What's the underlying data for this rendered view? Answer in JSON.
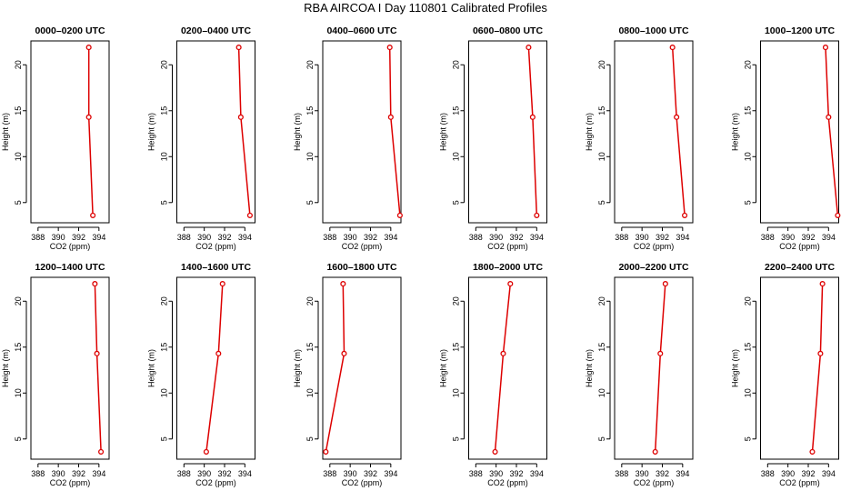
{
  "title": "RBA AIRCOA I  Day 110801  Calibrated Profiles",
  "colors": {
    "series": "#dd0000",
    "axis": "#000000"
  },
  "chart_data": [
    {
      "type": "line",
      "title": "0000–0200 UTC",
      "xlabel": "CO2 (ppm)",
      "ylabel": "Height (m)",
      "xlim": [
        387.3,
        395.0
      ],
      "ylim": [
        2.8,
        22.6
      ],
      "xticks": [
        388,
        390,
        392,
        394
      ],
      "yticks": [
        5,
        10,
        15,
        20
      ],
      "x": [
        393.0,
        393.0,
        393.4
      ],
      "y": [
        21.9,
        14.3,
        3.6
      ]
    },
    {
      "type": "line",
      "title": "0200–0400 UTC",
      "xlabel": "CO2 (ppm)",
      "ylabel": "Height (m)",
      "xlim": [
        387.3,
        395.0
      ],
      "ylim": [
        2.8,
        22.6
      ],
      "xticks": [
        388,
        390,
        392,
        394
      ],
      "yticks": [
        5,
        10,
        15,
        20
      ],
      "x": [
        393.4,
        393.6,
        394.5
      ],
      "y": [
        21.9,
        14.3,
        3.6
      ]
    },
    {
      "type": "line",
      "title": "0400–0600 UTC",
      "xlabel": "CO2 (ppm)",
      "ylabel": "Height (m)",
      "xlim": [
        387.3,
        395.0
      ],
      "ylim": [
        2.8,
        22.6
      ],
      "xticks": [
        388,
        390,
        392,
        394
      ],
      "yticks": [
        5,
        10,
        15,
        20
      ],
      "x": [
        393.9,
        394.0,
        394.9
      ],
      "y": [
        21.9,
        14.3,
        3.6
      ]
    },
    {
      "type": "line",
      "title": "0600–0800 UTC",
      "xlabel": "CO2 (ppm)",
      "ylabel": "Height (m)",
      "xlim": [
        387.3,
        395.0
      ],
      "ylim": [
        2.8,
        22.6
      ],
      "xticks": [
        388,
        390,
        392,
        394
      ],
      "yticks": [
        5,
        10,
        15,
        20
      ],
      "x": [
        393.2,
        393.6,
        394.0
      ],
      "y": [
        21.9,
        14.3,
        3.6
      ]
    },
    {
      "type": "line",
      "title": "0800–1000 UTC",
      "xlabel": "CO2 (ppm)",
      "ylabel": "Height (m)",
      "xlim": [
        387.3,
        395.0
      ],
      "ylim": [
        2.8,
        22.6
      ],
      "xticks": [
        388,
        390,
        392,
        394
      ],
      "yticks": [
        5,
        10,
        15,
        20
      ],
      "x": [
        393.0,
        393.4,
        394.2
      ],
      "y": [
        21.9,
        14.3,
        3.6
      ]
    },
    {
      "type": "line",
      "title": "1000–1200 UTC",
      "xlabel": "CO2 (ppm)",
      "ylabel": "Height (m)",
      "xlim": [
        387.3,
        395.0
      ],
      "ylim": [
        2.8,
        22.6
      ],
      "xticks": [
        388,
        390,
        392,
        394
      ],
      "yticks": [
        5,
        10,
        15,
        20
      ],
      "x": [
        393.7,
        394.0,
        394.9
      ],
      "y": [
        21.9,
        14.3,
        3.6
      ]
    },
    {
      "type": "line",
      "title": "1200–1400 UTC",
      "xlabel": "CO2 (ppm)",
      "ylabel": "Height (m)",
      "xlim": [
        387.3,
        395.0
      ],
      "ylim": [
        2.8,
        22.6
      ],
      "xticks": [
        388,
        390,
        392,
        394
      ],
      "yticks": [
        5,
        10,
        15,
        20
      ],
      "x": [
        393.6,
        393.8,
        394.2
      ],
      "y": [
        21.9,
        14.3,
        3.6
      ]
    },
    {
      "type": "line",
      "title": "1400–1600 UTC",
      "xlabel": "CO2 (ppm)",
      "ylabel": "Height (m)",
      "xlim": [
        387.3,
        395.0
      ],
      "ylim": [
        2.8,
        22.6
      ],
      "xticks": [
        388,
        390,
        392,
        394
      ],
      "yticks": [
        5,
        10,
        15,
        20
      ],
      "x": [
        391.8,
        391.4,
        390.2
      ],
      "y": [
        21.9,
        14.3,
        3.6
      ]
    },
    {
      "type": "line",
      "title": "1600–1800 UTC",
      "xlabel": "CO2 (ppm)",
      "ylabel": "Height (m)",
      "xlim": [
        387.3,
        395.0
      ],
      "ylim": [
        2.8,
        22.6
      ],
      "xticks": [
        388,
        390,
        392,
        394
      ],
      "yticks": [
        5,
        10,
        15,
        20
      ],
      "x": [
        389.3,
        389.4,
        387.6
      ],
      "y": [
        21.9,
        14.3,
        3.6
      ]
    },
    {
      "type": "line",
      "title": "1800–2000 UTC",
      "xlabel": "CO2 (ppm)",
      "ylabel": "Height (m)",
      "xlim": [
        387.3,
        395.0
      ],
      "ylim": [
        2.8,
        22.6
      ],
      "xticks": [
        388,
        390,
        392,
        394
      ],
      "yticks": [
        5,
        10,
        15,
        20
      ],
      "x": [
        391.4,
        390.7,
        389.9
      ],
      "y": [
        21.9,
        14.3,
        3.6
      ]
    },
    {
      "type": "line",
      "title": "2000–2200 UTC",
      "xlabel": "CO2 (ppm)",
      "ylabel": "Height (m)",
      "xlim": [
        387.3,
        395.0
      ],
      "ylim": [
        2.8,
        22.6
      ],
      "xticks": [
        388,
        390,
        392,
        394
      ],
      "yticks": [
        5,
        10,
        15,
        20
      ],
      "x": [
        392.3,
        391.8,
        391.3
      ],
      "y": [
        21.9,
        14.3,
        3.6
      ]
    },
    {
      "type": "line",
      "title": "2200–2400 UTC",
      "xlabel": "CO2 (ppm)",
      "ylabel": "Height (m)",
      "xlim": [
        387.3,
        395.0
      ],
      "ylim": [
        2.8,
        22.6
      ],
      "xticks": [
        388,
        390,
        392,
        394
      ],
      "yticks": [
        5,
        10,
        15,
        20
      ],
      "x": [
        393.4,
        393.2,
        392.4
      ],
      "y": [
        21.9,
        14.3,
        3.6
      ]
    }
  ]
}
